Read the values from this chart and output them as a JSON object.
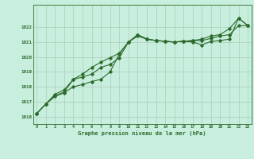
{
  "title": "Graphe pression niveau de la mer (hPa)",
  "bg_color": "#c8eedd",
  "grid_color": "#aaccbb",
  "line_color": "#2d6b2d",
  "x_min": 0,
  "x_max": 23,
  "y_min": 1015.5,
  "y_max": 1023.5,
  "yticks": [
    1016,
    1017,
    1018,
    1019,
    1020,
    1021,
    1022
  ],
  "series1": [
    1016.2,
    1016.85,
    1017.35,
    1017.6,
    1018.0,
    1018.15,
    1018.35,
    1018.5,
    1019.0,
    1020.2,
    1021.0,
    1021.4,
    1021.2,
    1021.1,
    1021.05,
    1021.0,
    1021.05,
    1021.0,
    1020.8,
    1021.05,
    1021.1,
    1021.2,
    1022.6,
    1022.1
  ],
  "series2": [
    1016.2,
    1016.85,
    1017.5,
    1017.8,
    1018.5,
    1018.65,
    1018.85,
    1019.3,
    1019.5,
    1019.95,
    1021.0,
    1021.5,
    1021.2,
    1021.1,
    1021.05,
    1021.0,
    1021.05,
    1021.1,
    1021.1,
    1021.25,
    1021.4,
    1021.5,
    1022.1,
    1022.1
  ],
  "series3": [
    1016.2,
    1016.85,
    1017.4,
    1017.65,
    1018.5,
    1018.85,
    1019.3,
    1019.65,
    1019.95,
    1020.25,
    1021.0,
    1021.45,
    1021.2,
    1021.1,
    1021.05,
    1021.0,
    1021.05,
    1021.1,
    1021.2,
    1021.4,
    1021.5,
    1021.9,
    1022.6,
    1022.1
  ]
}
